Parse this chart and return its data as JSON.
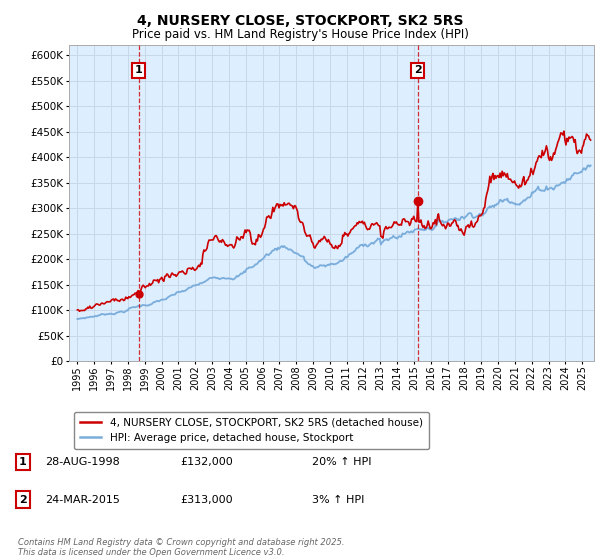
{
  "title": "4, NURSERY CLOSE, STOCKPORT, SK2 5RS",
  "subtitle": "Price paid vs. HM Land Registry's House Price Index (HPI)",
  "sale1_date": "28-AUG-1998",
  "sale1_price": 132000,
  "sale1_label": "20% ↑ HPI",
  "sale2_date": "24-MAR-2015",
  "sale2_price": 313000,
  "sale2_label": "3% ↑ HPI",
  "legend_line1": "4, NURSERY CLOSE, STOCKPORT, SK2 5RS (detached house)",
  "legend_line2": "HPI: Average price, detached house, Stockport",
  "footer": "Contains HM Land Registry data © Crown copyright and database right 2025.\nThis data is licensed under the Open Government Licence v3.0.",
  "red_color": "#cc0000",
  "blue_color": "#7aaddb",
  "dot_color": "#cc0000",
  "vline_color": "#cc0000",
  "grid_color": "#c8d8e8",
  "bg_color": "#ddeeff",
  "ylim": [
    0,
    620000
  ],
  "yticks": [
    0,
    50000,
    100000,
    150000,
    200000,
    250000,
    300000,
    350000,
    400000,
    450000,
    500000,
    550000,
    600000
  ],
  "xstart": 1994.5,
  "xend": 2025.7,
  "sale1_x": 1998.65,
  "sale2_x": 2015.23
}
